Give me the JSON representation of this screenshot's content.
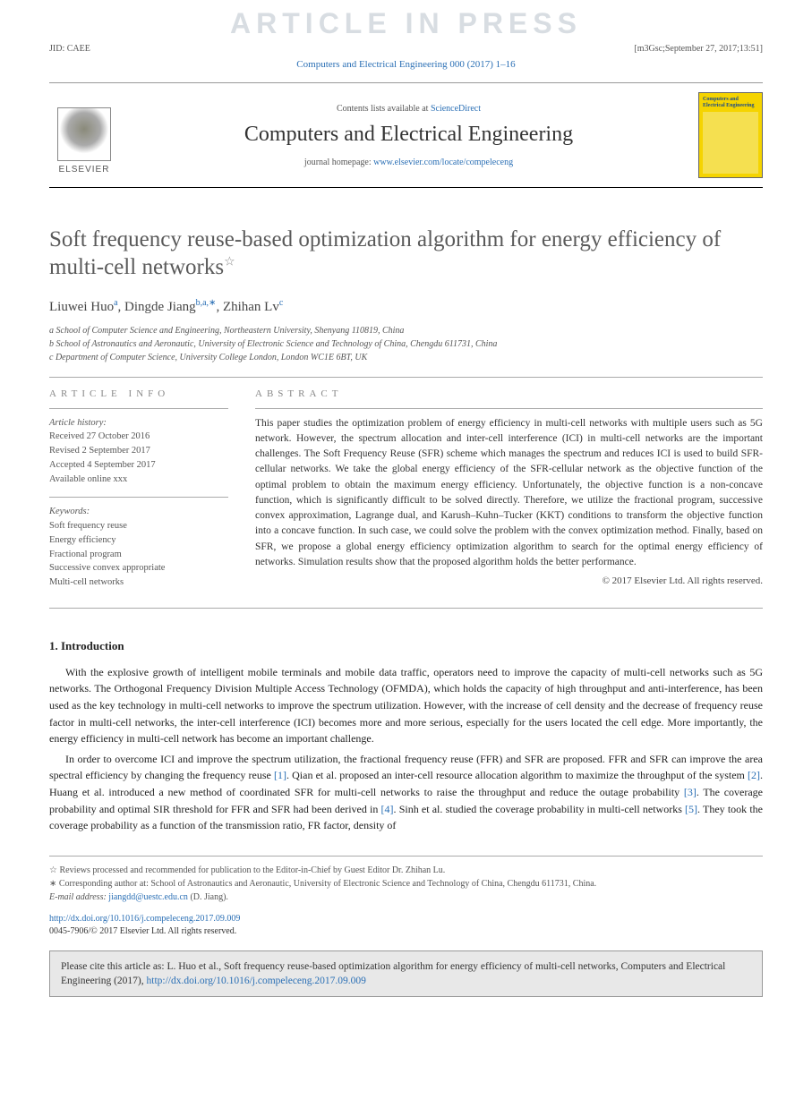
{
  "watermark": "ARTICLE IN PRESS",
  "header": {
    "jid": "JID: CAEE",
    "meta": "[m3Gsc;September 27, 2017;13:51]"
  },
  "journal_ref": "Computers and Electrical Engineering 000 (2017) 1–16",
  "masthead": {
    "contents_prefix": "Contents lists available at ",
    "sciencedirect": "ScienceDirect",
    "journal_name": "Computers and Electrical Engineering",
    "homepage_prefix": "journal homepage: ",
    "homepage_url": "www.elsevier.com/locate/compeleceng",
    "elsevier": "ELSEVIER",
    "cover_title": "Computers and Electrical Engineering"
  },
  "article": {
    "title": "Soft frequency reuse-based optimization algorithm for energy efficiency of multi-cell networks",
    "star": "☆"
  },
  "authors": {
    "a1_name": "Liuwei Huo",
    "a1_sup": "a",
    "a2_name": "Dingde Jiang",
    "a2_sup": "b,a,∗",
    "a3_name": "Zhihan Lv",
    "a3_sup": "c"
  },
  "affiliations": {
    "a": "a School of Computer Science and Engineering, Northeastern University, Shenyang 110819, China",
    "b": "b School of Astronautics and Aeronautic, University of Electronic Science and Technology of China, Chengdu 611731, China",
    "c": "c Department of Computer Science, University College London, London WC1E 6BT, UK"
  },
  "info": {
    "label": "ARTICLE INFO",
    "history_heading": "Article history:",
    "received": "Received 27 October 2016",
    "revised": "Revised 2 September 2017",
    "accepted": "Accepted 4 September 2017",
    "online": "Available online xxx",
    "keywords_heading": "Keywords:",
    "k1": "Soft frequency reuse",
    "k2": "Energy efficiency",
    "k3": "Fractional program",
    "k4": "Successive convex appropriate",
    "k5": "Multi-cell networks"
  },
  "abstract": {
    "label": "ABSTRACT",
    "text": "This paper studies the optimization problem of energy efficiency in multi-cell networks with multiple users such as 5G network. However, the spectrum allocation and inter-cell interference (ICI) in multi-cell networks are the important challenges. The Soft Frequency Reuse (SFR) scheme which manages the spectrum and reduces ICI is used to build SFR-cellular networks. We take the global energy efficiency of the SFR-cellular network as the objective function of the optimal problem to obtain the maximum energy efficiency. Unfortunately, the objective function is a non-concave function, which is significantly difficult to be solved directly. Therefore, we utilize the fractional program, successive convex approximation, Lagrange dual, and Karush–Kuhn–Tucker (KKT) conditions to transform the objective function into a concave function. In such case, we could solve the problem with the convex optimization method. Finally, based on SFR, we propose a global energy efficiency optimization algorithm to search for the optimal energy efficiency of networks. Simulation results show that the proposed algorithm holds the better performance.",
    "copyright": "© 2017 Elsevier Ltd. All rights reserved."
  },
  "intro": {
    "heading": "1. Introduction",
    "p1": "With the explosive growth of intelligent mobile terminals and mobile data traffic, operators need to improve the capacity of multi-cell networks such as 5G networks. The Orthogonal Frequency Division Multiple Access Technology (OFMDA), which holds the capacity of high throughput and anti-interference, has been used as the key technology in multi-cell networks to improve the spectrum utilization. However, with the increase of cell density and the decrease of frequency reuse factor in multi-cell networks, the inter-cell interference (ICI) becomes more and more serious, especially for the users located the cell edge. More importantly, the energy efficiency in multi-cell network has become an important challenge.",
    "p2_a": "In order to overcome ICI and improve the spectrum utilization, the fractional frequency reuse (FFR) and SFR are proposed. FFR and SFR can improve the area spectral efficiency by changing the frequency reuse ",
    "p2_c1": "[1]",
    "p2_b": ". Qian et al. proposed an inter-cell resource allocation algorithm to maximize the throughput of the system ",
    "p2_c2": "[2]",
    "p2_c": ". Huang et al. introduced a new method of coordinated SFR for multi-cell networks to raise the throughput and reduce the outage probability ",
    "p2_c3": "[3]",
    "p2_d": ". The coverage probability and optimal SIR threshold for FFR and SFR had been derived in ",
    "p2_c4": "[4]",
    "p2_e": ". Sinh et al. studied the coverage probability in multi-cell networks ",
    "p2_c5": "[5]",
    "p2_f": ". They took the coverage probability as a function of the transmission ratio, FR factor, density of"
  },
  "footnotes": {
    "star": "☆ Reviews processed and recommended for publication to the Editor-in-Chief by Guest Editor Dr. Zhihan Lu.",
    "corr": "∗ Corresponding author at: School of Astronautics and Aeronautic, University of Electronic Science and Technology of China, Chengdu 611731, China.",
    "email_label": "E-mail address: ",
    "email": "jiangdd@uestc.edu.cn",
    "email_suffix": " (D. Jiang)."
  },
  "doi": {
    "url": "http://dx.doi.org/10.1016/j.compeleceng.2017.09.009",
    "issn": "0045-7906/© 2017 Elsevier Ltd. All rights reserved."
  },
  "citebox": {
    "text_a": "Please cite this article as: L. Huo et al., Soft frequency reuse-based optimization algorithm for energy efficiency of multi-cell networks, Computers and Electrical Engineering (2017), ",
    "url": "http://dx.doi.org/10.1016/j.compeleceng.2017.09.009"
  }
}
